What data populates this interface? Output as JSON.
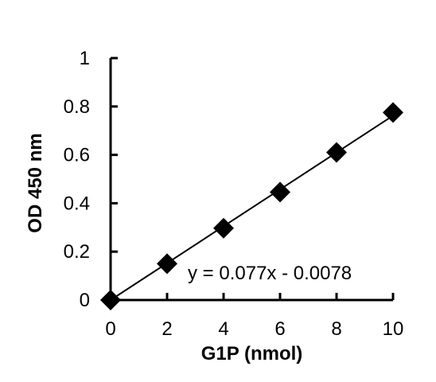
{
  "chart_data": {
    "type": "scatter",
    "title": "",
    "xlabel": "G1P (nmol)",
    "ylabel": "OD 450 nm",
    "xlim": [
      0,
      10
    ],
    "ylim": [
      0,
      1
    ],
    "x_ticks": [
      0,
      2,
      4,
      6,
      8,
      10
    ],
    "y_ticks": [
      0,
      0.2,
      0.4,
      0.6,
      0.8,
      1
    ],
    "x_tick_labels": [
      "0",
      "2",
      "4",
      "6",
      "8",
      "10"
    ],
    "y_tick_labels": [
      "0",
      "0.2",
      "0.4",
      "0.6",
      "0.8",
      "1"
    ],
    "grid": false,
    "marker": "diamond",
    "series": [
      {
        "x": [
          0,
          2,
          4,
          6,
          8,
          10
        ],
        "y": [
          0,
          0.15,
          0.297,
          0.446,
          0.61,
          0.775
        ],
        "color": "#000000"
      }
    ],
    "trendline": {
      "slope": 0.077,
      "intercept": -0.0078,
      "color": "#000000"
    },
    "annotations": [
      {
        "text": "y = 0.077x - 0.0078"
      }
    ]
  }
}
